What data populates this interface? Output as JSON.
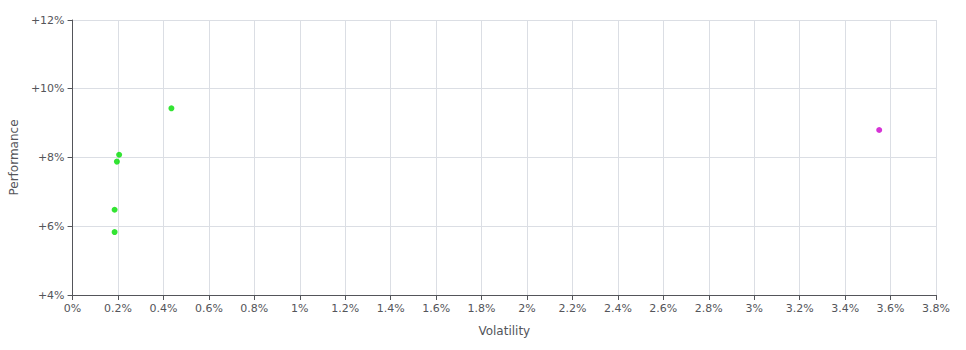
{
  "chart_data": {
    "type": "scatter",
    "xlabel": "Volatility",
    "ylabel": "Performance",
    "series": [
      {
        "color": "#00dd00",
        "x": [
          0.00185,
          0.00185,
          0.00195,
          0.00205,
          0.00435
        ],
        "values": [
          0.0583,
          0.0648,
          0.0788,
          0.0808,
          0.0943
        ]
      },
      {
        "color": "#cc00cc",
        "x": [
          0.0355
        ],
        "values": [
          0.088
        ]
      }
    ],
    "xlim": [
      0.0,
      0.038
    ],
    "xticks": [
      {
        "value": 0.0,
        "label": "0%"
      },
      {
        "value": 0.002,
        "label": "0.2%"
      },
      {
        "value": 0.004,
        "label": "0.4%"
      },
      {
        "value": 0.006,
        "label": "0.6%"
      },
      {
        "value": 0.008,
        "label": "0.8%"
      },
      {
        "value": 0.01,
        "label": "1%"
      },
      {
        "value": 0.012,
        "label": "1.2%"
      },
      {
        "value": 0.014,
        "label": "1.4%"
      },
      {
        "value": 0.016,
        "label": "1.6%"
      },
      {
        "value": 0.018,
        "label": "1.8%"
      },
      {
        "value": 0.02,
        "label": "2%"
      },
      {
        "value": 0.022,
        "label": "2.2%"
      },
      {
        "value": 0.024,
        "label": "2.4%"
      },
      {
        "value": 0.026,
        "label": "2.6%"
      },
      {
        "value": 0.028,
        "label": "2.8%"
      },
      {
        "value": 0.03,
        "label": "3%"
      },
      {
        "value": 0.032,
        "label": "3.2%"
      },
      {
        "value": 0.034,
        "label": "3.4%"
      },
      {
        "value": 0.036,
        "label": "3.6%"
      },
      {
        "value": 0.038,
        "label": "3.8%"
      }
    ],
    "ylim": [
      0.04,
      0.12
    ],
    "yticks": [
      {
        "value": 0.04,
        "label": "+4%"
      },
      {
        "value": 0.06,
        "label": "+6%"
      },
      {
        "value": 0.08,
        "label": "+8%"
      },
      {
        "value": 0.1,
        "label": "+10%"
      },
      {
        "value": 0.12,
        "label": "+12%"
      }
    ],
    "grid": true
  }
}
